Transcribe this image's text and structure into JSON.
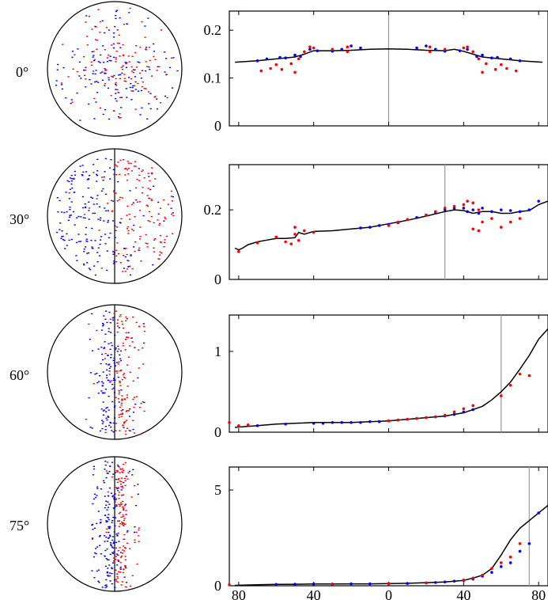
{
  "chart_data": [
    {
      "type": "line",
      "row_label": "0°",
      "x_ticks": [
        "80",
        "40",
        "0",
        "40",
        "80"
      ],
      "x_tick_values": [
        -80,
        -40,
        0,
        40,
        80
      ],
      "xlim": [
        -85,
        85
      ],
      "ylim": [
        0,
        0.24
      ],
      "y_ticks": [
        "0",
        "0.1",
        "0.2"
      ],
      "y_tick_values": [
        0,
        0.1,
        0.2
      ],
      "vline_x": 0,
      "series": [
        {
          "role": "curve",
          "color": "#000000",
          "x": [
            -82,
            -70,
            -60,
            -50,
            -45,
            -40,
            -30,
            -20,
            -10,
            0,
            10,
            20,
            30,
            35,
            40,
            45,
            50,
            60,
            70,
            82
          ],
          "y": [
            0.133,
            0.136,
            0.14,
            0.144,
            0.15,
            0.157,
            0.157,
            0.158,
            0.16,
            0.161,
            0.16,
            0.158,
            0.157,
            0.16,
            0.156,
            0.15,
            0.144,
            0.14,
            0.136,
            0.133
          ]
        },
        {
          "role": "blue-points",
          "color": "#0000ff",
          "x": [
            -70,
            -65,
            -58,
            -55,
            -50,
            -47,
            -42,
            -38,
            -30,
            -25,
            -20,
            -15,
            15,
            20,
            25,
            30,
            38,
            42,
            47,
            50,
            55,
            58,
            65,
            70
          ],
          "y": [
            0.136,
            0.14,
            0.143,
            0.142,
            0.148,
            0.145,
            0.16,
            0.157,
            0.156,
            0.16,
            0.167,
            0.163,
            0.163,
            0.167,
            0.16,
            0.156,
            0.157,
            0.16,
            0.145,
            0.148,
            0.142,
            0.143,
            0.14,
            0.136
          ]
        },
        {
          "role": "red-points",
          "color": "#ff0000",
          "x": [
            -68,
            -63,
            -60,
            -57,
            -52,
            -50,
            -48,
            -45,
            -42,
            -40,
            -30,
            -22,
            -22,
            22,
            22,
            30,
            40,
            42,
            45,
            48,
            50,
            52,
            57,
            60,
            63,
            68
          ],
          "y": [
            0.115,
            0.12,
            0.128,
            0.118,
            0.13,
            0.112,
            0.14,
            0.155,
            0.165,
            0.163,
            0.16,
            0.155,
            0.165,
            0.155,
            0.165,
            0.16,
            0.163,
            0.165,
            0.155,
            0.14,
            0.112,
            0.13,
            0.118,
            0.128,
            0.12,
            0.115
          ]
        }
      ]
    },
    {
      "type": "line",
      "row_label": "30°",
      "x_ticks": [
        "80",
        "40",
        "0",
        "40",
        "80"
      ],
      "x_tick_values": [
        -80,
        -40,
        0,
        40,
        80
      ],
      "xlim": [
        -85,
        85
      ],
      "ylim": [
        0,
        0.33
      ],
      "y_ticks": [
        "0",
        "0.2"
      ],
      "y_tick_values": [
        0,
        0.2
      ],
      "vline_x": 30,
      "series": [
        {
          "role": "curve",
          "color": "#000000",
          "x": [
            -82,
            -80,
            -78,
            -75,
            -70,
            -65,
            -60,
            -55,
            -50,
            -48,
            -45,
            -40,
            -30,
            -20,
            -10,
            0,
            10,
            20,
            30,
            35,
            40,
            45,
            50,
            55,
            60,
            65,
            70,
            75,
            80,
            85
          ],
          "y": [
            0.09,
            0.085,
            0.09,
            0.1,
            0.108,
            0.113,
            0.118,
            0.118,
            0.12,
            0.135,
            0.13,
            0.138,
            0.14,
            0.145,
            0.15,
            0.16,
            0.17,
            0.182,
            0.195,
            0.2,
            0.198,
            0.19,
            0.195,
            0.195,
            0.19,
            0.19,
            0.195,
            0.198,
            0.215,
            0.225
          ]
        },
        {
          "role": "blue-points",
          "color": "#0000ff",
          "x": [
            -15,
            -10,
            -5,
            0,
            5,
            10,
            15,
            20,
            25,
            30,
            35,
            40,
            42,
            45,
            48,
            50,
            55,
            60,
            65,
            70,
            75,
            80
          ],
          "y": [
            0.148,
            0.15,
            0.155,
            0.158,
            0.163,
            0.172,
            0.178,
            0.185,
            0.192,
            0.2,
            0.205,
            0.205,
            0.195,
            0.2,
            0.19,
            0.205,
            0.195,
            0.2,
            0.198,
            0.195,
            0.2,
            0.225
          ]
        },
        {
          "role": "red-points",
          "color": "#ff0000",
          "x": [
            -80,
            -70,
            -60,
            -55,
            -52,
            -50,
            -50,
            -48,
            -45,
            -40,
            0,
            5,
            10,
            20,
            25,
            30,
            35,
            40,
            42,
            45,
            45,
            48,
            48,
            50,
            55,
            60,
            65,
            70
          ],
          "y": [
            0.08,
            0.105,
            0.122,
            0.108,
            0.102,
            0.15,
            0.13,
            0.112,
            0.14,
            0.135,
            0.155,
            0.165,
            0.172,
            0.185,
            0.195,
            0.205,
            0.21,
            0.215,
            0.225,
            0.22,
            0.145,
            0.2,
            0.14,
            0.165,
            0.175,
            0.15,
            0.165,
            0.175
          ]
        }
      ]
    },
    {
      "type": "line",
      "row_label": "60°",
      "x_ticks": [
        "80",
        "40",
        "0",
        "40",
        "80"
      ],
      "x_tick_values": [
        -80,
        -40,
        0,
        40,
        80
      ],
      "xlim": [
        -85,
        85
      ],
      "ylim": [
        0,
        1.45
      ],
      "y_ticks": [
        "0",
        "1"
      ],
      "y_tick_values": [
        0,
        1
      ],
      "vline_x": 60,
      "series": [
        {
          "role": "curve",
          "color": "#000000",
          "x": [
            -82,
            -70,
            -60,
            -50,
            -40,
            -30,
            -20,
            -10,
            0,
            10,
            20,
            30,
            40,
            45,
            50,
            55,
            60,
            65,
            70,
            75,
            80,
            85
          ],
          "y": [
            0.06,
            0.08,
            0.1,
            0.11,
            0.12,
            0.12,
            0.12,
            0.13,
            0.14,
            0.16,
            0.18,
            0.2,
            0.24,
            0.28,
            0.32,
            0.4,
            0.5,
            0.62,
            0.78,
            0.95,
            1.15,
            1.28
          ]
        },
        {
          "role": "blue-points",
          "color": "#0000ff",
          "x": [
            -70,
            -55,
            -40,
            -35,
            -30,
            -25,
            -20,
            -15,
            -10,
            -5,
            0,
            5,
            10,
            15,
            20,
            25,
            30,
            35,
            40,
            45
          ],
          "y": [
            0.08,
            0.1,
            0.11,
            0.11,
            0.12,
            0.12,
            0.12,
            0.12,
            0.13,
            0.13,
            0.14,
            0.15,
            0.16,
            0.17,
            0.18,
            0.19,
            0.2,
            0.22,
            0.25,
            0.28
          ]
        },
        {
          "role": "red-points",
          "color": "#ff0000",
          "x": [
            -85,
            -80,
            -75,
            0,
            5,
            10,
            15,
            20,
            25,
            30,
            35,
            40,
            45,
            60,
            65,
            70,
            75
          ],
          "y": [
            0.12,
            0.08,
            0.09,
            0.14,
            0.15,
            0.16,
            0.17,
            0.18,
            0.19,
            0.21,
            0.25,
            0.29,
            0.33,
            0.45,
            0.58,
            0.72,
            0.7
          ]
        }
      ]
    },
    {
      "type": "line",
      "row_label": "75°",
      "x_ticks": [
        "80",
        "40",
        "0",
        "40",
        "80"
      ],
      "x_tick_values": [
        -80,
        -40,
        0,
        40,
        80
      ],
      "xlim": [
        -85,
        85
      ],
      "ylim": [
        0,
        6.2
      ],
      "y_ticks": [
        "0",
        "5"
      ],
      "y_tick_values": [
        0,
        5
      ],
      "vline_x": 75,
      "series": [
        {
          "role": "curve",
          "color": "#000000",
          "x": [
            -82,
            -70,
            -60,
            -50,
            -40,
            -30,
            -20,
            -10,
            0,
            10,
            20,
            30,
            40,
            45,
            50,
            55,
            60,
            65,
            70,
            75,
            80,
            85
          ],
          "y": [
            0.02,
            0.05,
            0.07,
            0.08,
            0.09,
            0.09,
            0.1,
            0.1,
            0.11,
            0.13,
            0.16,
            0.2,
            0.28,
            0.4,
            0.55,
            0.9,
            1.6,
            2.4,
            3.0,
            3.4,
            3.8,
            4.2
          ]
        },
        {
          "role": "blue-points",
          "color": "#0000ff",
          "x": [
            -60,
            -50,
            -40,
            -30,
            -20,
            -10,
            0,
            10,
            20,
            25,
            30,
            35,
            40,
            45,
            50,
            55,
            60,
            65,
            70,
            75,
            80
          ],
          "y": [
            0.07,
            0.08,
            0.09,
            0.09,
            0.1,
            0.1,
            0.11,
            0.12,
            0.15,
            0.17,
            0.2,
            0.24,
            0.28,
            0.35,
            0.5,
            0.7,
            1.0,
            1.2,
            1.8,
            2.2,
            3.8
          ]
        },
        {
          "role": "red-points",
          "color": "#ff0000",
          "x": [
            -85,
            -30,
            0,
            20,
            40,
            45,
            50,
            55,
            60,
            65,
            70
          ],
          "y": [
            0.05,
            0.09,
            0.11,
            0.15,
            0.3,
            0.4,
            0.55,
            0.9,
            1.2,
            1.5,
            2.2
          ]
        }
      ]
    }
  ]
}
